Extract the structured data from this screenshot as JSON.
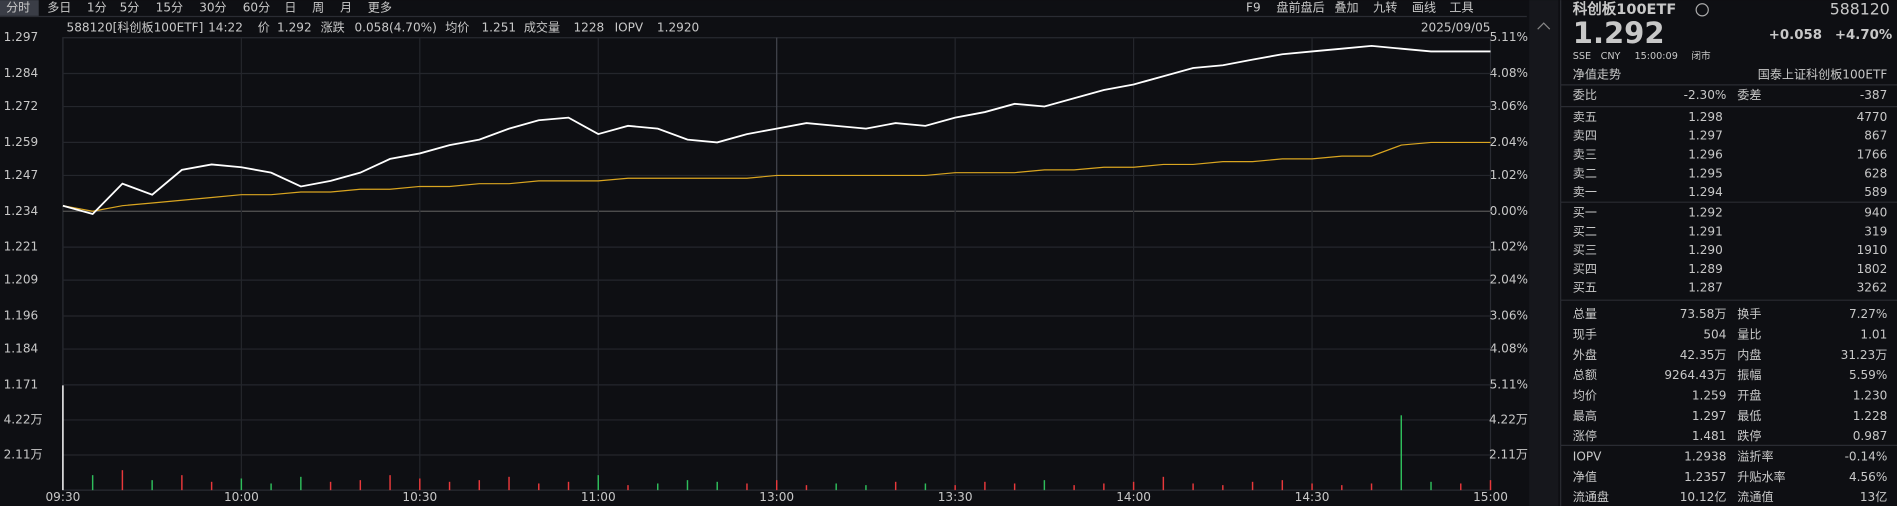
{
  "toolbar": {
    "tabs": [
      "分时",
      "多日",
      "1分",
      "5分",
      "15分",
      "30分",
      "60分",
      "日",
      "周",
      "月",
      "更多"
    ],
    "tools": [
      "F9",
      "盘前盘后",
      "叠加",
      "九转",
      "画线",
      "工具"
    ]
  },
  "info": {
    "symbol": "588120[科创板100ETF]",
    "time": "14:22",
    "price": "1.292",
    "change_label": "涨跌",
    "change": "0.058(4.70%)",
    "avg": "1.251",
    "volume_label": "成交量",
    "volume": "1228",
    "iopv_label": "IOPV",
    "iopv": "1.2920",
    "date": "2025/09/05"
  },
  "chart_data": {
    "type": "line",
    "x": [
      "09:30",
      "09:35",
      "09:40",
      "09:45",
      "09:50",
      "09:55",
      "10:00",
      "10:05",
      "10:10",
      "10:15",
      "10:20",
      "10:25",
      "10:30",
      "10:35",
      "10:40",
      "10:45",
      "10:50",
      "10:55",
      "11:00",
      "11:05",
      "11:10",
      "11:15",
      "11:20",
      "11:25",
      "11:30",
      "13:05",
      "13:10",
      "13:15",
      "13:20",
      "13:25",
      "13:30",
      "13:35",
      "13:40",
      "13:45",
      "13:50",
      "13:55",
      "14:00",
      "14:05",
      "14:10",
      "14:15",
      "14:20",
      "14:25",
      "14:30",
      "14:35",
      "14:40",
      "14:45",
      "14:50",
      "14:55",
      "15:00"
    ],
    "series": [
      {
        "name": "价",
        "color": "#ffffff",
        "values": [
          1.236,
          1.233,
          1.244,
          1.24,
          1.249,
          1.251,
          1.25,
          1.248,
          1.243,
          1.245,
          1.248,
          1.253,
          1.255,
          1.258,
          1.26,
          1.264,
          1.267,
          1.268,
          1.262,
          1.265,
          1.264,
          1.26,
          1.259,
          1.262,
          1.264,
          1.266,
          1.265,
          1.264,
          1.266,
          1.265,
          1.268,
          1.27,
          1.273,
          1.272,
          1.275,
          1.278,
          1.28,
          1.283,
          1.286,
          1.287,
          1.289,
          1.291,
          1.292,
          1.293,
          1.294,
          1.293,
          1.292,
          1.292,
          1.292
        ]
      },
      {
        "name": "均价",
        "color": "#d9a520",
        "values": [
          1.236,
          1.234,
          1.236,
          1.237,
          1.238,
          1.239,
          1.24,
          1.24,
          1.241,
          1.241,
          1.242,
          1.242,
          1.243,
          1.243,
          1.244,
          1.244,
          1.245,
          1.245,
          1.245,
          1.246,
          1.246,
          1.246,
          1.246,
          1.246,
          1.247,
          1.247,
          1.247,
          1.247,
          1.247,
          1.247,
          1.248,
          1.248,
          1.248,
          1.249,
          1.249,
          1.25,
          1.25,
          1.251,
          1.251,
          1.252,
          1.252,
          1.253,
          1.253,
          1.254,
          1.254,
          1.258,
          1.259,
          1.259,
          1.259
        ]
      }
    ],
    "ylim": [
      1.171,
      1.297
    ],
    "yticks": [
      1.297,
      1.284,
      1.272,
      1.259,
      1.247,
      1.234,
      1.221,
      1.209,
      1.196,
      1.184,
      1.171
    ],
    "y2lim": [
      -5.11,
      5.11
    ],
    "y2ticks": [
      {
        "value": 5.11,
        "label": "5.11%"
      },
      {
        "value": 4.08,
        "label": "4.08%"
      },
      {
        "value": 3.06,
        "label": "3.06%"
      },
      {
        "value": 2.04,
        "label": "2.04%"
      },
      {
        "value": 1.02,
        "label": "1.02%"
      },
      {
        "value": 0,
        "label": "0.00%"
      },
      {
        "value": -1.02,
        "label": "1.02%"
      },
      {
        "value": -2.04,
        "label": "2.04%"
      },
      {
        "value": -3.06,
        "label": "3.06%"
      },
      {
        "value": -4.08,
        "label": "4.08%"
      },
      {
        "value": -5.11,
        "label": "5.11%"
      }
    ],
    "xticks": [
      "09:30",
      "10:00",
      "10:30",
      "11:00",
      "13:00",
      "13:30",
      "14:00",
      "14:30",
      "15:00"
    ],
    "volume": {
      "values": [
        63000,
        9000,
        12000,
        6000,
        9000,
        5000,
        7000,
        4000,
        8000,
        5000,
        6000,
        9000,
        7000,
        5000,
        6000,
        8000,
        4000,
        5000,
        9000,
        3000,
        4000,
        6000,
        5000,
        4000,
        6000,
        3000,
        4000,
        3000,
        5000,
        4000,
        3000,
        5000,
        4000,
        6000,
        3000,
        4000,
        5000,
        8000,
        4000,
        3000,
        5000,
        6000,
        4000,
        3000,
        4000,
        45000,
        5000,
        4000,
        6000
      ],
      "ylim": [
        0,
        63300
      ],
      "yticks": [
        {
          "value": 42200,
          "label": "4.22万"
        },
        {
          "value": 21100,
          "label": "2.11万"
        }
      ]
    },
    "up_color": "#e8383b",
    "down_color": "#2ebd5b",
    "grid": true
  },
  "quote": {
    "name": "科创板100ETF",
    "code": "588120",
    "price": "1.292",
    "change": "+0.058",
    "pct": "+4.70%",
    "meta": [
      "SSE",
      "CNY",
      "15:00:09",
      "闭市"
    ],
    "tabs": [
      "净值走势",
      "国泰上证科创板100ETF"
    ],
    "ratio": [
      "委比",
      "-2.30%",
      "委差",
      "-387"
    ],
    "asks": [
      [
        "卖五",
        "1.298",
        "4770"
      ],
      [
        "卖四",
        "1.297",
        "867"
      ],
      [
        "卖三",
        "1.296",
        "1766"
      ],
      [
        "卖二",
        "1.295",
        "628"
      ],
      [
        "卖一",
        "1.294",
        "589"
      ]
    ],
    "bids": [
      [
        "买一",
        "1.292",
        "940"
      ],
      [
        "买二",
        "1.291",
        "319"
      ],
      [
        "买三",
        "1.290",
        "1910"
      ],
      [
        "买四",
        "1.289",
        "1802"
      ],
      [
        "买五",
        "1.287",
        "3262"
      ]
    ],
    "stats": [
      [
        {
          "label": "总量",
          "value": "73.58万",
          "color": "#dddddd"
        },
        {
          "label": "换手",
          "value": "7.27%",
          "color": "#dddddd"
        }
      ],
      [
        {
          "label": "现手",
          "value": "504",
          "color": "#dddddd"
        },
        {
          "label": "量比",
          "value": "1.01",
          "color": "#dddddd"
        }
      ],
      [
        {
          "label": "外盘",
          "value": "42.35万",
          "color": "#e8383b"
        },
        {
          "label": "内盘",
          "value": "31.23万",
          "color": "#2ebd5b"
        }
      ],
      [
        {
          "label": "总额",
          "value": "9264.43万",
          "color": "#dddddd"
        },
        {
          "label": "振幅",
          "value": "5.59%",
          "color": "#dddddd"
        }
      ],
      [
        {
          "label": "均价",
          "value": "1.259",
          "color": "#e8383b"
        },
        {
          "label": "开盘",
          "value": "1.230",
          "color": "#2ebd5b"
        }
      ],
      [
        {
          "label": "最高",
          "value": "1.297",
          "color": "#e8383b"
        },
        {
          "label": "最低",
          "value": "1.228",
          "color": "#2ebd5b"
        }
      ],
      [
        {
          "label": "涨停",
          "value": "1.481",
          "color": "#e8383b"
        },
        {
          "label": "跌停",
          "value": "0.987",
          "color": "#2ebd5b"
        }
      ],
      [
        {
          "label": "IOPV",
          "value": "1.2938",
          "color": "#dddddd"
        },
        {
          "label": "溢折率",
          "value": "-0.14%",
          "color": "#2ebd5b"
        }
      ],
      [
        {
          "label": "净值",
          "value": "1.2357",
          "color": "#2ebd5b"
        },
        {
          "label": "升贴水率",
          "value": "4.56%",
          "color": "#e8383b"
        }
      ],
      [
        {
          "label": "流通盘",
          "value": "10.12亿",
          "color": "#dddddd"
        },
        {
          "label": "流通值",
          "value": "13亿",
          "color": "#dddddd"
        }
      ]
    ]
  }
}
